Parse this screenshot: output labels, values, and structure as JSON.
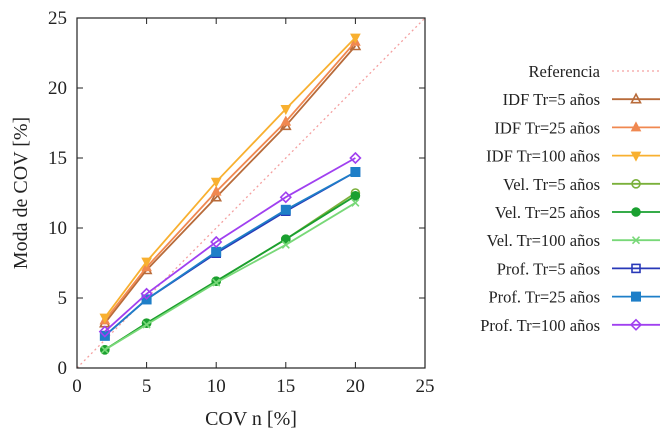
{
  "chart_data": {
    "type": "line",
    "xlabel": "COV n [%]",
    "ylabel": "Moda de COV [%]",
    "xlim": [
      0,
      25
    ],
    "ylim": [
      0,
      25
    ],
    "xticks": [
      0,
      5,
      10,
      15,
      20,
      25
    ],
    "yticks": [
      0,
      5,
      10,
      15,
      20,
      25
    ],
    "grid": false,
    "legend_position": "outside-right",
    "x": [
      2,
      5,
      10,
      15,
      20
    ],
    "reference": {
      "name": "Referencia",
      "color": "#f4a0a0",
      "x": [
        0,
        25
      ],
      "y": [
        0,
        25
      ]
    },
    "series": [
      {
        "name": "IDF Tr=5 años",
        "color": "#b86b3a",
        "marker": "triangle-up",
        "values": [
          3.2,
          7.0,
          12.2,
          17.3,
          23.0
        ]
      },
      {
        "name": "IDF Tr=25 años",
        "color": "#f08850",
        "marker": "triangle-up-filled",
        "values": [
          3.4,
          7.2,
          12.6,
          17.6,
          23.3
        ]
      },
      {
        "name": "IDF Tr=100 años",
        "color": "#f8b030",
        "marker": "triangle-down-filled",
        "values": [
          3.6,
          7.6,
          13.3,
          18.5,
          23.6
        ]
      },
      {
        "name": "Vel. Tr=5 años",
        "color": "#7ab03a",
        "marker": "circle-open",
        "values": [
          1.3,
          3.2,
          6.2,
          9.2,
          12.5
        ]
      },
      {
        "name": "Vel. Tr=25 años",
        "color": "#1aa030",
        "marker": "circle-filled",
        "values": [
          1.3,
          3.2,
          6.2,
          9.2,
          12.3
        ]
      },
      {
        "name": "Vel. Tr=100 años",
        "color": "#78d878",
        "marker": "x",
        "values": [
          1.3,
          3.1,
          6.1,
          8.8,
          11.8
        ]
      },
      {
        "name": "Prof. Tr=5 años",
        "color": "#2838b8",
        "marker": "square-open",
        "values": [
          2.3,
          4.9,
          8.2,
          11.2,
          14.0
        ]
      },
      {
        "name": "Prof. Tr=25 años",
        "color": "#1e7fc8",
        "marker": "square-filled",
        "values": [
          2.3,
          4.9,
          8.3,
          11.3,
          14.0
        ]
      },
      {
        "name": "Prof. Tr=100 años",
        "color": "#a040f0",
        "marker": "diamond-open",
        "values": [
          2.6,
          5.3,
          9.0,
          12.2,
          15.0
        ]
      }
    ]
  }
}
